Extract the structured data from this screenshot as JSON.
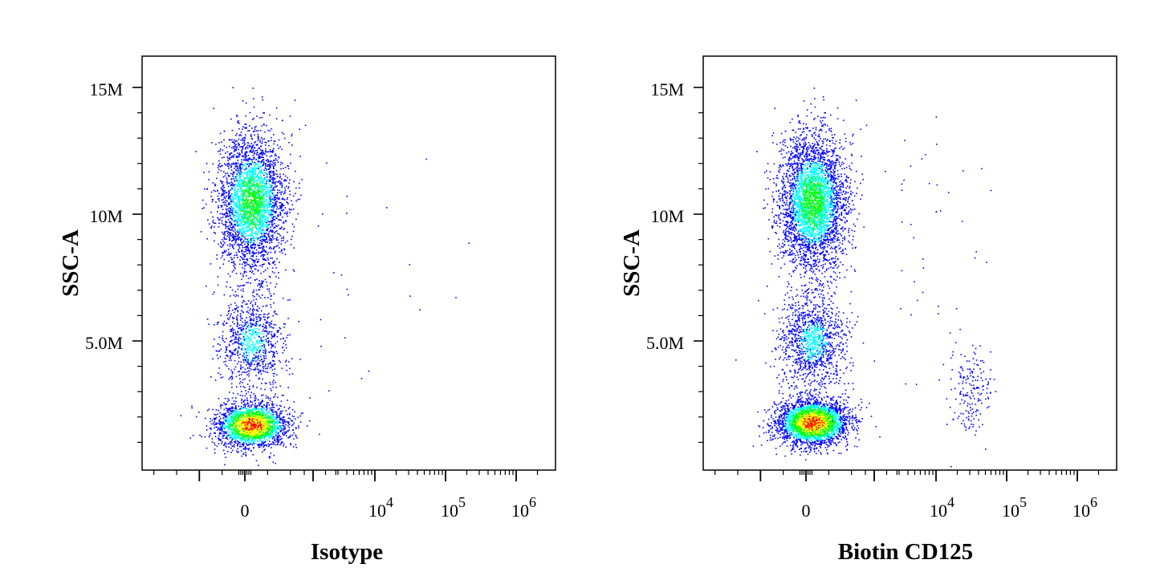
{
  "chart_data": [
    {
      "type": "scatter",
      "style": "density dot plot (flow cytometry pseudocolor)",
      "xlabel": "Isotype",
      "ylabel": "SSC-A",
      "x_scale": "biexponential",
      "x_ticks": [
        "0",
        "10^4",
        "10^5",
        "10^6"
      ],
      "y_ticks": [
        "5.0M",
        "10M",
        "15M"
      ],
      "ylim": [
        0,
        15500000
      ],
      "populations": [
        {
          "description": "dense low-SSC cluster",
          "x_center": 0,
          "y_center": 1700000,
          "events": 2300
        },
        {
          "description": "mid-SSC population",
          "x_center": 0,
          "y_center": 5000000,
          "events": 900
        },
        {
          "description": "high-SSC population",
          "x_center": 0,
          "y_center": 10500000,
          "events": 3100
        },
        {
          "description": "sparse scattered positive events",
          "x_range": [
            1000,
            300000
          ],
          "y_range": [
            2000000,
            13000000
          ],
          "events": 22
        }
      ],
      "colors": [
        "#0000ff",
        "#00ffff",
        "#00ff00",
        "#ffff00",
        "#ff0000"
      ]
    },
    {
      "type": "scatter",
      "style": "density dot plot (flow cytometry pseudocolor)",
      "xlabel": "Biotin CD125",
      "ylabel": "SSC-A",
      "x_scale": "biexponential",
      "x_ticks": [
        "0",
        "10^4",
        "10^5",
        "10^6"
      ],
      "y_ticks": [
        "5.0M",
        "10M",
        "15M"
      ],
      "ylim": [
        0,
        15500000
      ],
      "populations": [
        {
          "description": "dense low-SSC cluster",
          "x_center": 0,
          "y_center": 1800000,
          "events": 3000
        },
        {
          "description": "mid-SSC population",
          "x_center": 0,
          "y_center": 5000000,
          "events": 1200
        },
        {
          "description": "high-SSC population",
          "x_center": 0,
          "y_center": 10500000,
          "events": 3600
        },
        {
          "description": "CD125-positive population",
          "x_center": 30000,
          "y_center": 3000000,
          "events": 180
        },
        {
          "description": "sparse scattered positive events",
          "x_range": [
            3000,
            60000
          ],
          "y_range": [
            3000000,
            14000000
          ],
          "events": 45
        }
      ],
      "colors": [
        "#0000ff",
        "#00ffff",
        "#00ff00",
        "#ffff00",
        "#ff0000"
      ]
    }
  ]
}
